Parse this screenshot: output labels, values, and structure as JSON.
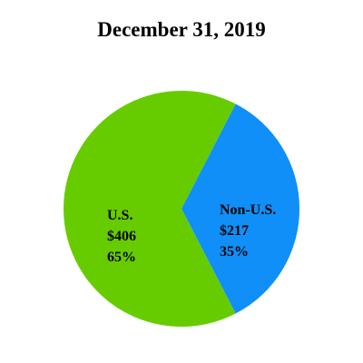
{
  "chart_data": {
    "type": "pie",
    "title": "December 31, 2019",
    "slices": [
      {
        "name": "U.S.",
        "value": 406,
        "value_label": "$406",
        "percent": 65,
        "percent_label": "65%",
        "color": "#66cc00"
      },
      {
        "name": "Non-U.S.",
        "value": 217,
        "value_label": "$217",
        "percent": 35,
        "percent_label": "35%",
        "color": "#0f8ff7"
      }
    ]
  }
}
